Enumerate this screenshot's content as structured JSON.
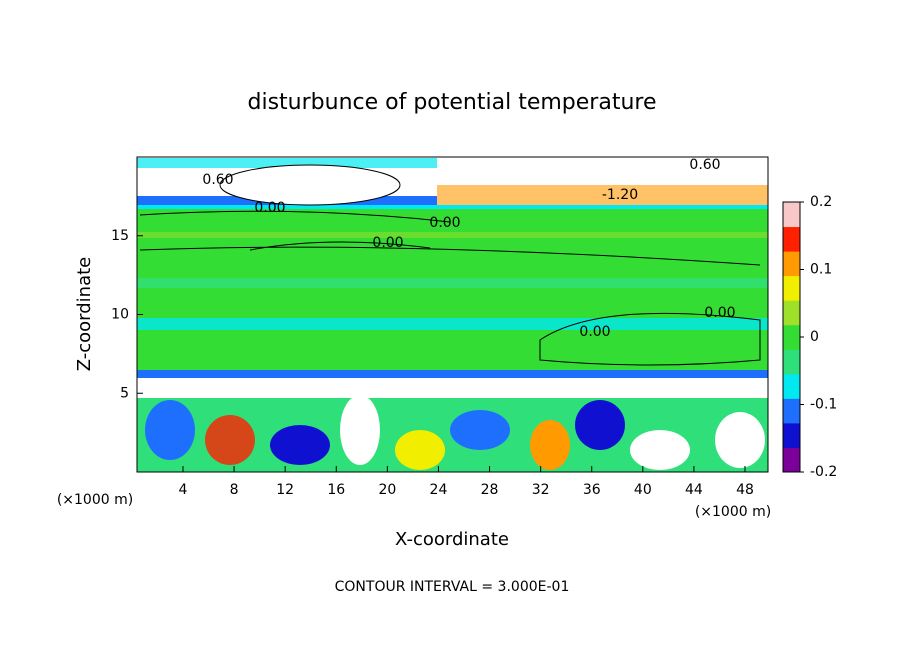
{
  "chart_data": {
    "type": "contour",
    "title": "disturbunce of potential temperature",
    "x_label": "X-coordinate",
    "y_label": "Z-coordinate",
    "x_unit": "(×1000 m)",
    "xlim": [
      0.4,
      49.8
    ],
    "xticks": [
      4,
      8,
      12,
      16,
      20,
      24,
      28,
      32,
      36,
      40,
      44,
      48
    ],
    "ylim": [
      0,
      20
    ],
    "yticks": [
      5,
      10,
      15
    ],
    "clim": [
      -0.2,
      0.2
    ],
    "cticks": [
      -0.2,
      -0.1,
      0,
      0.1,
      0.2
    ],
    "colormap": [
      "#7a0099",
      "#1010d0",
      "#1f6fff",
      "#00e8f0",
      "#2fe07a",
      "#33dd33",
      "#9fe02a",
      "#f2ee00",
      "#ff9a00",
      "#ff2000",
      "#f8c8c8"
    ],
    "contour_labels": [
      "0.60",
      "0.00",
      "0.00",
      "0.00",
      "0.00",
      "0.00",
      "-1.20",
      "0.60"
    ],
    "footer": "CONTOUR INTERVAL = 3.000E-01"
  }
}
